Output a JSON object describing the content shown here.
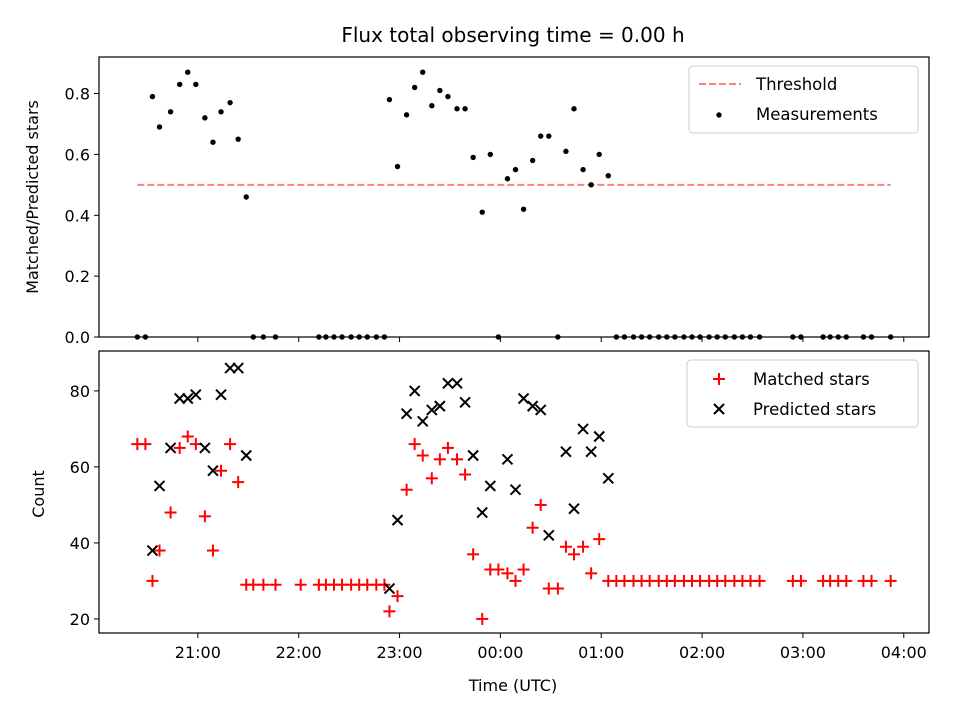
{
  "chart_data": [
    {
      "type": "scatter",
      "title": "Flux total observing time = 0.00 h",
      "xlabel": "",
      "ylabel": "Matched/Predicted stars",
      "ylim": [
        0,
        0.92
      ],
      "yticks": [
        "0.0",
        "0.2",
        "0.4",
        "0.6",
        "0.8"
      ],
      "xlim": [
        -0.98,
        7.25
      ],
      "legend": "top-right",
      "threshold": {
        "name": "Threshold",
        "value": 0.5,
        "x_start": -0.6,
        "x_end": 6.87,
        "color": "#ff8080"
      },
      "series": [
        {
          "name": "Measurements",
          "color": "#000000",
          "points": [
            [
              -0.6,
              0
            ],
            [
              -0.52,
              0
            ],
            [
              -0.45,
              0.79
            ],
            [
              -0.38,
              0.69
            ],
            [
              -0.27,
              0.74
            ],
            [
              -0.18,
              0.83
            ],
            [
              -0.1,
              0.87
            ],
            [
              -0.02,
              0.83
            ],
            [
              0.07,
              0.72
            ],
            [
              0.15,
              0.64
            ],
            [
              0.23,
              0.74
            ],
            [
              0.32,
              0.77
            ],
            [
              0.4,
              0.65
            ],
            [
              0.48,
              0.46
            ],
            [
              0.55,
              0
            ],
            [
              0.65,
              0
            ],
            [
              0.77,
              0
            ],
            [
              1.2,
              0
            ],
            [
              1.27,
              0
            ],
            [
              1.35,
              0
            ],
            [
              1.43,
              0
            ],
            [
              1.52,
              0
            ],
            [
              1.6,
              0
            ],
            [
              1.68,
              0
            ],
            [
              1.77,
              0
            ],
            [
              1.85,
              0
            ],
            [
              1.9,
              0.78
            ],
            [
              1.98,
              0.56
            ],
            [
              2.07,
              0.73
            ],
            [
              2.15,
              0.82
            ],
            [
              2.23,
              0.87
            ],
            [
              2.32,
              0.76
            ],
            [
              2.4,
              0.81
            ],
            [
              2.48,
              0.79
            ],
            [
              2.57,
              0.75
            ],
            [
              2.65,
              0.75
            ],
            [
              2.73,
              0.59
            ],
            [
              2.82,
              0.41
            ],
            [
              2.9,
              0.6
            ],
            [
              2.98,
              0
            ],
            [
              3.07,
              0.52
            ],
            [
              3.15,
              0.55
            ],
            [
              3.23,
              0.42
            ],
            [
              3.32,
              0.58
            ],
            [
              3.4,
              0.66
            ],
            [
              3.48,
              0.66
            ],
            [
              3.57,
              0
            ],
            [
              3.65,
              0.61
            ],
            [
              3.73,
              0.75
            ],
            [
              3.82,
              0.55
            ],
            [
              3.9,
              0.5
            ],
            [
              3.98,
              0.6
            ],
            [
              4.07,
              0.53
            ],
            [
              4.15,
              0
            ],
            [
              4.23,
              0
            ],
            [
              4.32,
              0
            ],
            [
              4.4,
              0
            ],
            [
              4.48,
              0
            ],
            [
              4.57,
              0
            ],
            [
              4.65,
              0
            ],
            [
              4.73,
              0
            ],
            [
              4.82,
              0
            ],
            [
              4.9,
              0
            ],
            [
              4.98,
              0
            ],
            [
              5.07,
              0
            ],
            [
              5.15,
              0
            ],
            [
              5.23,
              0
            ],
            [
              5.32,
              0
            ],
            [
              5.4,
              0
            ],
            [
              5.48,
              0
            ],
            [
              5.57,
              0
            ],
            [
              5.9,
              0
            ],
            [
              5.98,
              0
            ],
            [
              6.2,
              0
            ],
            [
              6.27,
              0
            ],
            [
              6.35,
              0
            ],
            [
              6.43,
              0
            ],
            [
              6.6,
              0
            ],
            [
              6.68,
              0
            ],
            [
              6.87,
              0
            ]
          ]
        }
      ]
    },
    {
      "type": "scatter",
      "title": "",
      "xlabel": "Time (UTC)",
      "ylabel": "Count",
      "ylim": [
        16.3,
        90.5
      ],
      "yticks": [
        "20",
        "40",
        "60",
        "80"
      ],
      "xlim": [
        -0.98,
        7.25
      ],
      "xticks": [
        "21:00",
        "22:00",
        "23:00",
        "00:00",
        "01:00",
        "02:00",
        "03:00",
        "04:00"
      ],
      "legend": "top-right",
      "series": [
        {
          "name": "Matched stars",
          "marker": "+",
          "color": "#ff0000",
          "points": [
            [
              -0.6,
              66
            ],
            [
              -0.52,
              66
            ],
            [
              -0.45,
              30
            ],
            [
              -0.38,
              38
            ],
            [
              -0.27,
              48
            ],
            [
              -0.18,
              65
            ],
            [
              -0.1,
              68
            ],
            [
              -0.02,
              66
            ],
            [
              0.07,
              47
            ],
            [
              0.15,
              38
            ],
            [
              0.23,
              59
            ],
            [
              0.32,
              66
            ],
            [
              0.4,
              56
            ],
            [
              0.48,
              29
            ],
            [
              0.55,
              29
            ],
            [
              0.65,
              29
            ],
            [
              0.77,
              29
            ],
            [
              1.02,
              29
            ],
            [
              1.2,
              29
            ],
            [
              1.27,
              29
            ],
            [
              1.35,
              29
            ],
            [
              1.43,
              29
            ],
            [
              1.52,
              29
            ],
            [
              1.6,
              29
            ],
            [
              1.68,
              29
            ],
            [
              1.77,
              29
            ],
            [
              1.85,
              29
            ],
            [
              1.9,
              22
            ],
            [
              1.98,
              26
            ],
            [
              2.07,
              54
            ],
            [
              2.15,
              66
            ],
            [
              2.23,
              63
            ],
            [
              2.32,
              57
            ],
            [
              2.4,
              62
            ],
            [
              2.48,
              65
            ],
            [
              2.57,
              62
            ],
            [
              2.65,
              58
            ],
            [
              2.73,
              37
            ],
            [
              2.82,
              20
            ],
            [
              2.9,
              33
            ],
            [
              2.98,
              33
            ],
            [
              3.07,
              32
            ],
            [
              3.15,
              30
            ],
            [
              3.23,
              33
            ],
            [
              3.32,
              44
            ],
            [
              3.4,
              50
            ],
            [
              3.48,
              28
            ],
            [
              3.57,
              28
            ],
            [
              3.65,
              39
            ],
            [
              3.73,
              37
            ],
            [
              3.82,
              39
            ],
            [
              3.9,
              32
            ],
            [
              3.98,
              41
            ],
            [
              4.07,
              30
            ],
            [
              4.15,
              30
            ],
            [
              4.23,
              30
            ],
            [
              4.32,
              30
            ],
            [
              4.4,
              30
            ],
            [
              4.48,
              30
            ],
            [
              4.57,
              30
            ],
            [
              4.65,
              30
            ],
            [
              4.73,
              30
            ],
            [
              4.82,
              30
            ],
            [
              4.9,
              30
            ],
            [
              4.98,
              30
            ],
            [
              5.07,
              30
            ],
            [
              5.15,
              30
            ],
            [
              5.23,
              30
            ],
            [
              5.32,
              30
            ],
            [
              5.4,
              30
            ],
            [
              5.48,
              30
            ],
            [
              5.57,
              30
            ],
            [
              5.9,
              30
            ],
            [
              5.98,
              30
            ],
            [
              6.2,
              30
            ],
            [
              6.27,
              30
            ],
            [
              6.35,
              30
            ],
            [
              6.43,
              30
            ],
            [
              6.6,
              30
            ],
            [
              6.68,
              30
            ],
            [
              6.87,
              30
            ]
          ]
        },
        {
          "name": "Predicted stars",
          "marker": "x",
          "color": "#000000",
          "points": [
            [
              -0.45,
              38
            ],
            [
              -0.38,
              55
            ],
            [
              -0.27,
              65
            ],
            [
              -0.18,
              78
            ],
            [
              -0.1,
              78
            ],
            [
              -0.02,
              79
            ],
            [
              0.07,
              65
            ],
            [
              0.15,
              59
            ],
            [
              0.23,
              79
            ],
            [
              0.32,
              86
            ],
            [
              0.4,
              86
            ],
            [
              0.48,
              63
            ],
            [
              1.9,
              28
            ],
            [
              1.98,
              46
            ],
            [
              2.07,
              74
            ],
            [
              2.15,
              80
            ],
            [
              2.23,
              72
            ],
            [
              2.32,
              75
            ],
            [
              2.4,
              76
            ],
            [
              2.48,
              82
            ],
            [
              2.57,
              82
            ],
            [
              2.65,
              77
            ],
            [
              2.73,
              63
            ],
            [
              2.82,
              48
            ],
            [
              2.9,
              55
            ],
            [
              3.07,
              62
            ],
            [
              3.15,
              54
            ],
            [
              3.23,
              78
            ],
            [
              3.32,
              76
            ],
            [
              3.4,
              75
            ],
            [
              3.48,
              42
            ],
            [
              3.65,
              64
            ],
            [
              3.73,
              49
            ],
            [
              3.82,
              70
            ],
            [
              3.9,
              64
            ],
            [
              3.98,
              68
            ],
            [
              4.07,
              57
            ]
          ]
        }
      ]
    }
  ]
}
